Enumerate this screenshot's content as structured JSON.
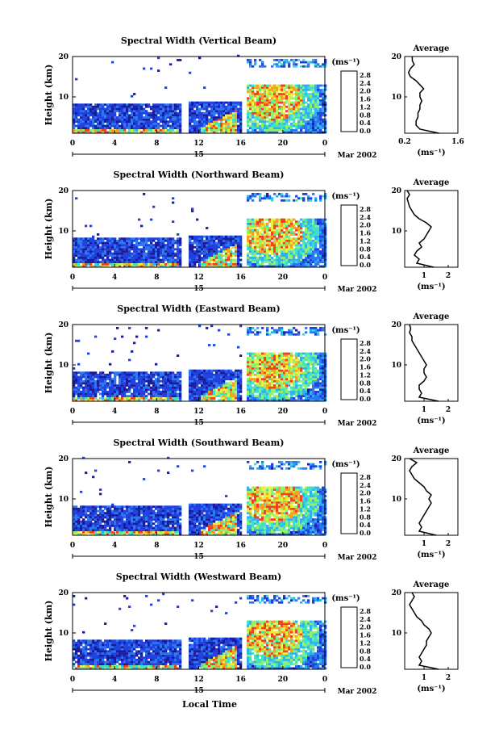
{
  "figure": {
    "xlabel": "Local Time",
    "date_label": "Mar 2002",
    "day_label": "15",
    "ylabel": "Height (km)",
    "avg_title": "Average",
    "unit_label": "(ms⁻¹)",
    "colorbar_ticks": [
      "2.8",
      "2.4",
      "2.0",
      "1.6",
      "1.2",
      "0.8",
      "0.4",
      "0.0"
    ],
    "colorscale": [
      "#1a1a9a",
      "#2040e0",
      "#2a78f0",
      "#30b0f0",
      "#40e0c8",
      "#90f070",
      "#e8f040",
      "#f8a020",
      "#f04020"
    ]
  },
  "chart_data": [
    {
      "type": "heatmap",
      "title": "Spectral Width (Vertical Beam)",
      "x_ticks": [
        "0",
        "4",
        "8",
        "12",
        "16",
        "20",
        "0"
      ],
      "xlim": [
        0,
        24
      ],
      "y_ticks": [
        "20",
        "10"
      ],
      "ylim": [
        1,
        20
      ],
      "colorbar_range": [
        0.0,
        3.0
      ],
      "data_gaps_hours": [
        [
          10.2,
          11
        ],
        [
          16,
          16.5
        ]
      ],
      "avg_profile": {
        "x_ticks": [
          "0.2",
          "1.6"
        ],
        "xlim": [
          0.2,
          1.6
        ],
        "y_ticks": [
          "20",
          "10"
        ],
        "height_km": [
          1,
          2,
          3,
          4,
          5,
          6,
          7,
          8,
          9,
          10,
          11,
          12,
          13,
          14,
          15,
          16,
          17,
          18,
          19,
          20
        ],
        "width_ms": [
          1.1,
          0.6,
          0.5,
          0.5,
          0.55,
          0.55,
          0.6,
          0.6,
          0.65,
          0.6,
          0.6,
          0.7,
          0.6,
          0.5,
          0.35,
          0.3,
          0.35,
          0.45,
          0.4,
          0.4
        ]
      }
    },
    {
      "type": "heatmap",
      "title": "Spectral Width (Northward Beam)",
      "x_ticks": [
        "0",
        "4",
        "8",
        "12",
        "16",
        "20",
        "0"
      ],
      "xlim": [
        0,
        24
      ],
      "y_ticks": [
        "20",
        "10"
      ],
      "ylim": [
        1,
        20
      ],
      "colorbar_range": [
        0.0,
        3.0
      ],
      "data_gaps_hours": [
        [
          10.2,
          11
        ],
        [
          16,
          16.5
        ]
      ],
      "avg_profile": {
        "x_ticks": [
          "1",
          "2"
        ],
        "xlim": [
          0.2,
          2.4
        ],
        "y_ticks": [
          "20",
          "10"
        ],
        "height_km": [
          1,
          2,
          3,
          4,
          5,
          6,
          7,
          8,
          9,
          10,
          11,
          12,
          13,
          14,
          15,
          16,
          17,
          18,
          19,
          20
        ],
        "width_ms": [
          1.4,
          0.7,
          0.8,
          0.6,
          0.7,
          0.9,
          0.8,
          1.0,
          1.1,
          1.2,
          1.3,
          1.1,
          0.8,
          0.6,
          0.5,
          0.4,
          0.35,
          0.3,
          0.4,
          0.3
        ]
      }
    },
    {
      "type": "heatmap",
      "title": "Spectral Width (Eastward Beam)",
      "x_ticks": [
        "0",
        "4",
        "8",
        "12",
        "16",
        "20",
        "0"
      ],
      "xlim": [
        0,
        24
      ],
      "y_ticks": [
        "20",
        "10"
      ],
      "ylim": [
        1,
        20
      ],
      "colorbar_range": [
        0.0,
        3.0
      ],
      "data_gaps_hours": [
        [
          10.2,
          11
        ],
        [
          16,
          16.5
        ]
      ],
      "avg_profile": {
        "x_ticks": [
          "1",
          "2"
        ],
        "xlim": [
          0.2,
          2.4
        ],
        "y_ticks": [
          "20",
          "10"
        ],
        "height_km": [
          1,
          2,
          3,
          4,
          5,
          6,
          7,
          8,
          9,
          10,
          11,
          12,
          13,
          14,
          15,
          16,
          17,
          18,
          19,
          20
        ],
        "width_ms": [
          1.6,
          0.8,
          0.9,
          0.8,
          0.8,
          1.0,
          1.1,
          1.0,
          1.0,
          1.1,
          1.0,
          0.9,
          0.8,
          0.7,
          0.6,
          0.5,
          0.5,
          0.4,
          0.45,
          0.4
        ]
      }
    },
    {
      "type": "heatmap",
      "title": "Spectral Width (Southward Beam)",
      "x_ticks": [
        "0",
        "4",
        "8",
        "12",
        "16",
        "20",
        "0"
      ],
      "xlim": [
        0,
        24
      ],
      "y_ticks": [
        "20",
        "10"
      ],
      "ylim": [
        1,
        20
      ],
      "colorbar_range": [
        0.0,
        3.0
      ],
      "data_gaps_hours": [
        [
          10.2,
          11
        ],
        [
          16,
          16.5
        ]
      ],
      "avg_profile": {
        "x_ticks": [
          "1",
          "2"
        ],
        "xlim": [
          0.2,
          2.4
        ],
        "y_ticks": [
          "20",
          "10"
        ],
        "height_km": [
          1,
          2,
          3,
          4,
          5,
          6,
          7,
          8,
          9,
          10,
          11,
          12,
          13,
          14,
          15,
          16,
          17,
          18,
          19,
          20
        ],
        "width_ms": [
          1.5,
          0.8,
          0.9,
          0.8,
          0.9,
          1.0,
          1.1,
          1.2,
          1.3,
          1.2,
          1.3,
          1.1,
          1.0,
          0.8,
          0.6,
          0.5,
          0.4,
          0.5,
          0.7,
          0.4
        ]
      }
    },
    {
      "type": "heatmap",
      "title": "Spectral Width (Westward Beam)",
      "x_ticks": [
        "0",
        "4",
        "8",
        "12",
        "16",
        "20",
        "0"
      ],
      "xlim": [
        0,
        24
      ],
      "y_ticks": [
        "20",
        "10"
      ],
      "ylim": [
        1,
        20
      ],
      "colorbar_range": [
        0.0,
        3.0
      ],
      "data_gaps_hours": [
        [
          10.2,
          11
        ],
        [
          16,
          16.5
        ]
      ],
      "avg_profile": {
        "x_ticks": [
          "1",
          "2"
        ],
        "xlim": [
          0.2,
          2.4
        ],
        "y_ticks": [
          "20",
          "10"
        ],
        "height_km": [
          1,
          2,
          3,
          4,
          5,
          6,
          7,
          8,
          9,
          10,
          11,
          12,
          13,
          14,
          15,
          16,
          17,
          18,
          19,
          20
        ],
        "width_ms": [
          1.6,
          0.8,
          0.9,
          0.8,
          0.9,
          1.0,
          1.1,
          1.1,
          1.2,
          1.3,
          1.2,
          1.0,
          0.9,
          0.7,
          0.6,
          0.5,
          0.4,
          0.5,
          0.6,
          0.5
        ]
      }
    }
  ]
}
